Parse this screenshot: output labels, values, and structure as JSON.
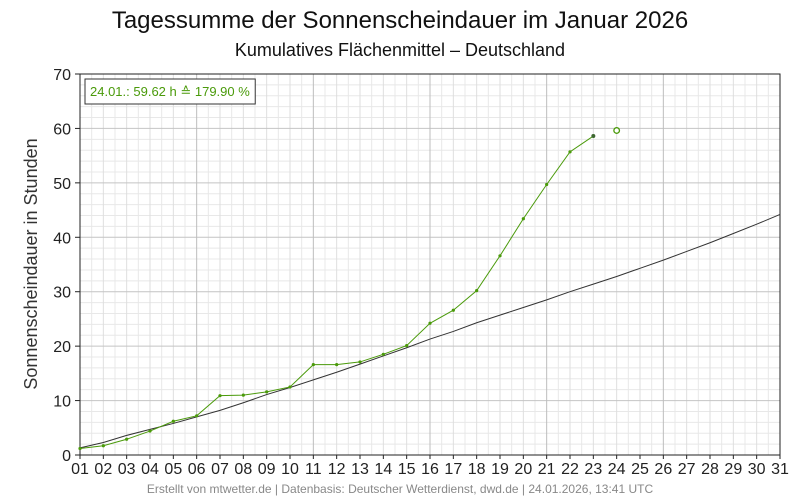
{
  "chart_data": {
    "type": "line",
    "title": "Tagessumme der Sonnenscheindauer im Januar 2026",
    "subtitle": "Kumulatives Flächenmittel – Deutschland",
    "ylabel": "Sonnenscheindauer in Stunden",
    "xlabel": "",
    "categories": [
      "01",
      "02",
      "03",
      "04",
      "05",
      "06",
      "07",
      "08",
      "09",
      "10",
      "11",
      "12",
      "13",
      "14",
      "15",
      "16",
      "17",
      "18",
      "19",
      "20",
      "21",
      "22",
      "23",
      "24",
      "25",
      "26",
      "27",
      "28",
      "29",
      "30",
      "31"
    ],
    "xlim": [
      1,
      31
    ],
    "ylim": [
      0,
      70
    ],
    "yticks": [
      0,
      10,
      20,
      30,
      40,
      50,
      60,
      70
    ],
    "grid": true,
    "series": [
      {
        "color": "#4a9a0a",
        "x": [
          1,
          2,
          3,
          4,
          5,
          6,
          7,
          8,
          9,
          10,
          11,
          12,
          13,
          14,
          15,
          16,
          17,
          18,
          19,
          20,
          21,
          22,
          23
        ],
        "values": [
          1.2,
          1.7,
          2.9,
          4.4,
          6.2,
          7.2,
          10.9,
          11.0,
          11.6,
          12.5,
          16.6,
          16.6,
          17.1,
          18.5,
          20.1,
          24.2,
          26.6,
          30.2,
          36.6,
          43.4,
          49.7,
          55.7,
          58.6
        ]
      },
      {
        "color": "#333333",
        "x": [
          1,
          2,
          3,
          4,
          5,
          6,
          7,
          8,
          9,
          10,
          11,
          12,
          13,
          14,
          15,
          16,
          17,
          18,
          19,
          20,
          21,
          22,
          23,
          24,
          25,
          26,
          27,
          28,
          29,
          30,
          31
        ],
        "values": [
          1.3,
          2.3,
          3.6,
          4.7,
          5.8,
          7.0,
          8.2,
          9.6,
          11.1,
          12.4,
          13.8,
          15.2,
          16.7,
          18.2,
          19.7,
          21.3,
          22.7,
          24.3,
          25.7,
          27.1,
          28.5,
          30.0,
          31.4,
          32.8,
          34.3,
          35.8,
          37.4,
          39.0,
          40.7,
          42.4,
          44.2
        ]
      }
    ],
    "current_point": {
      "x": 24,
      "y": 59.62,
      "color": "#4a9a0a"
    },
    "annotation": {
      "text": "24.01.: 59.62 h ≙ 179.90 %",
      "color": "#4a9a0a"
    }
  },
  "footer": "Erstellt von mtwetter.de | Datenbasis: Deutscher Wetterdienst, dwd.de | 24.01.2026, 13:41 UTC"
}
